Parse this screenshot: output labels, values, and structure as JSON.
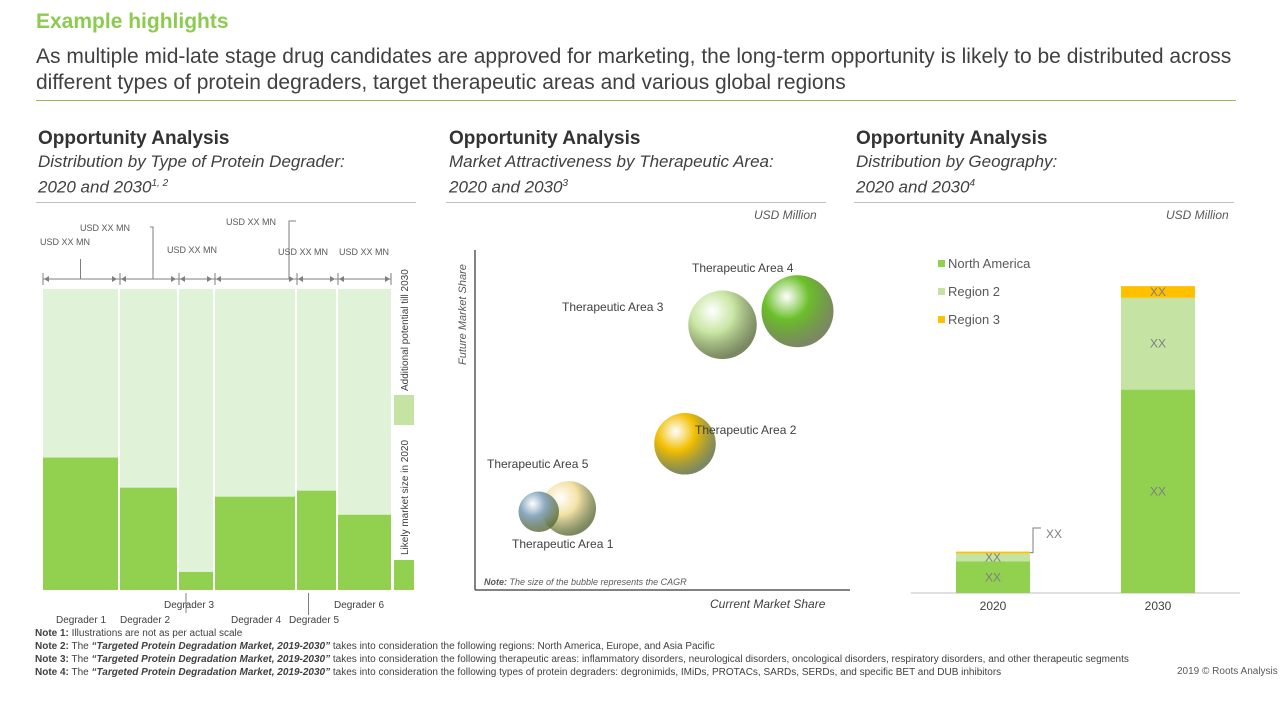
{
  "header": {
    "title": "Example highlights",
    "headline": "As multiple mid-late stage drug candidates are approved for marketing, the long-term opportunity is likely to be distributed across different types of protein degraders, target therapeutic areas and various global regions"
  },
  "panels": {
    "left": {
      "title": "Opportunity Analysis",
      "subtitle_line1": "Distribution by Type of Protein Degrader:",
      "subtitle_line2": "2020 and 2030",
      "subtitle_sup": "1, 2"
    },
    "middle": {
      "title": "Opportunity Analysis",
      "subtitle_line1": "Market Attractiveness by Therapeutic Area:",
      "subtitle_line2": "2020 and 2030",
      "subtitle_sup": "3",
      "unit": "USD Million"
    },
    "right": {
      "title": "Opportunity Analysis",
      "subtitle_line1": "Distribution by Geography:",
      "subtitle_line2": "2020 and 2030",
      "subtitle_sup": "4",
      "unit": "USD Million"
    }
  },
  "colors": {
    "green": "#92d050",
    "light_green": "#c5e3a3",
    "pale_green": "#e0f2d8",
    "yellow": "#ffc000",
    "accent": "#8dcb50"
  },
  "chart_data": [
    {
      "type": "bar",
      "subtype": "variable-width",
      "categories": [
        "Degrader 1",
        "Degrader 2",
        "Degrader 3",
        "Degrader 4",
        "Degrader 5",
        "Degrader 6"
      ],
      "value_labels": [
        "USD XX   MN",
        "USD XX   MN",
        "USD XX   MN",
        "USD XX   MN",
        "USD XX   MN",
        "USD XX   MN"
      ],
      "series": [
        {
          "name": "Likely market size in 2020",
          "values": [
            0.44,
            0.34,
            0.06,
            0.31,
            0.33,
            0.25
          ]
        },
        {
          "name": "Additional potential till 2030",
          "values": [
            0.56,
            0.66,
            0.94,
            0.69,
            0.67,
            0.75
          ]
        }
      ],
      "widths": [
        75,
        57,
        34,
        80,
        39,
        53
      ]
    },
    {
      "type": "scatter",
      "subtype": "bubble",
      "xlabel": "Current  Market Share",
      "ylabel": "Future Market Share",
      "note_label": "Note:",
      "note_text": " The size of the bubble represents the CAGR",
      "points": [
        {
          "label": "Therapeutic  Area 1",
          "x": 0.17,
          "y": 0.23,
          "size": 0.35,
          "color": "#8aa9bf"
        },
        {
          "label": "Therapeutic  Area 2",
          "x": 0.56,
          "y": 0.43,
          "size": 0.65,
          "color": "#f2be00"
        },
        {
          "label": "Therapeutic  Area 3",
          "x": 0.66,
          "y": 0.78,
          "size": 0.75,
          "color": "#c9e6a3"
        },
        {
          "label": "Therapeutic  Area 4",
          "x": 0.86,
          "y": 0.82,
          "size": 0.8,
          "color": "#6bbf2a"
        },
        {
          "label": "Therapeutic  Area 5",
          "x": 0.25,
          "y": 0.24,
          "size": 0.55,
          "color": "#f4e2a6"
        }
      ]
    },
    {
      "type": "bar",
      "subtype": "stacked",
      "categories": [
        "2020",
        "2030"
      ],
      "series": [
        {
          "name": "North America",
          "values": [
            35,
            226
          ],
          "label": "XX",
          "color": "#92d050"
        },
        {
          "name": "Region 2",
          "values": [
            9,
            102
          ],
          "label": "XX",
          "color": "#c5e3a3"
        },
        {
          "name": "Region 3",
          "values": [
            2,
            13
          ],
          "label": "XX",
          "color": "#ffc000"
        }
      ],
      "callout": "XX"
    }
  ],
  "notes": [
    {
      "label": "Note 1:",
      "text": " Illustrations are not as per actual scale",
      "italic": ""
    },
    {
      "label": "Note 2:",
      "pre": " The ",
      "italic": "“Targeted Protein Degradation Market, 2019-2030”",
      "text": " takes into consideration the following regions: North America, Europe, and Asia Pacific"
    },
    {
      "label": "Note 3:",
      "pre": " The ",
      "italic": "“Targeted Protein Degradation Market, 2019-2030”",
      "text": " takes into consideration the following therapeutic areas: inflammatory disorders, neurological disorders, oncological disorders, respiratory disorders, and other therapeutic segments"
    },
    {
      "label": "Note 4:",
      "pre": " The ",
      "italic": "“Targeted Protein Degradation Market, 2019-2030”",
      "text": " takes into consideration the following types of protein degraders: degronimids, IMiDs, PROTACs, SARDs, SERDs, and specific BET and DUB inhibitors"
    }
  ],
  "copyright": "2019 © Roots Analysis"
}
